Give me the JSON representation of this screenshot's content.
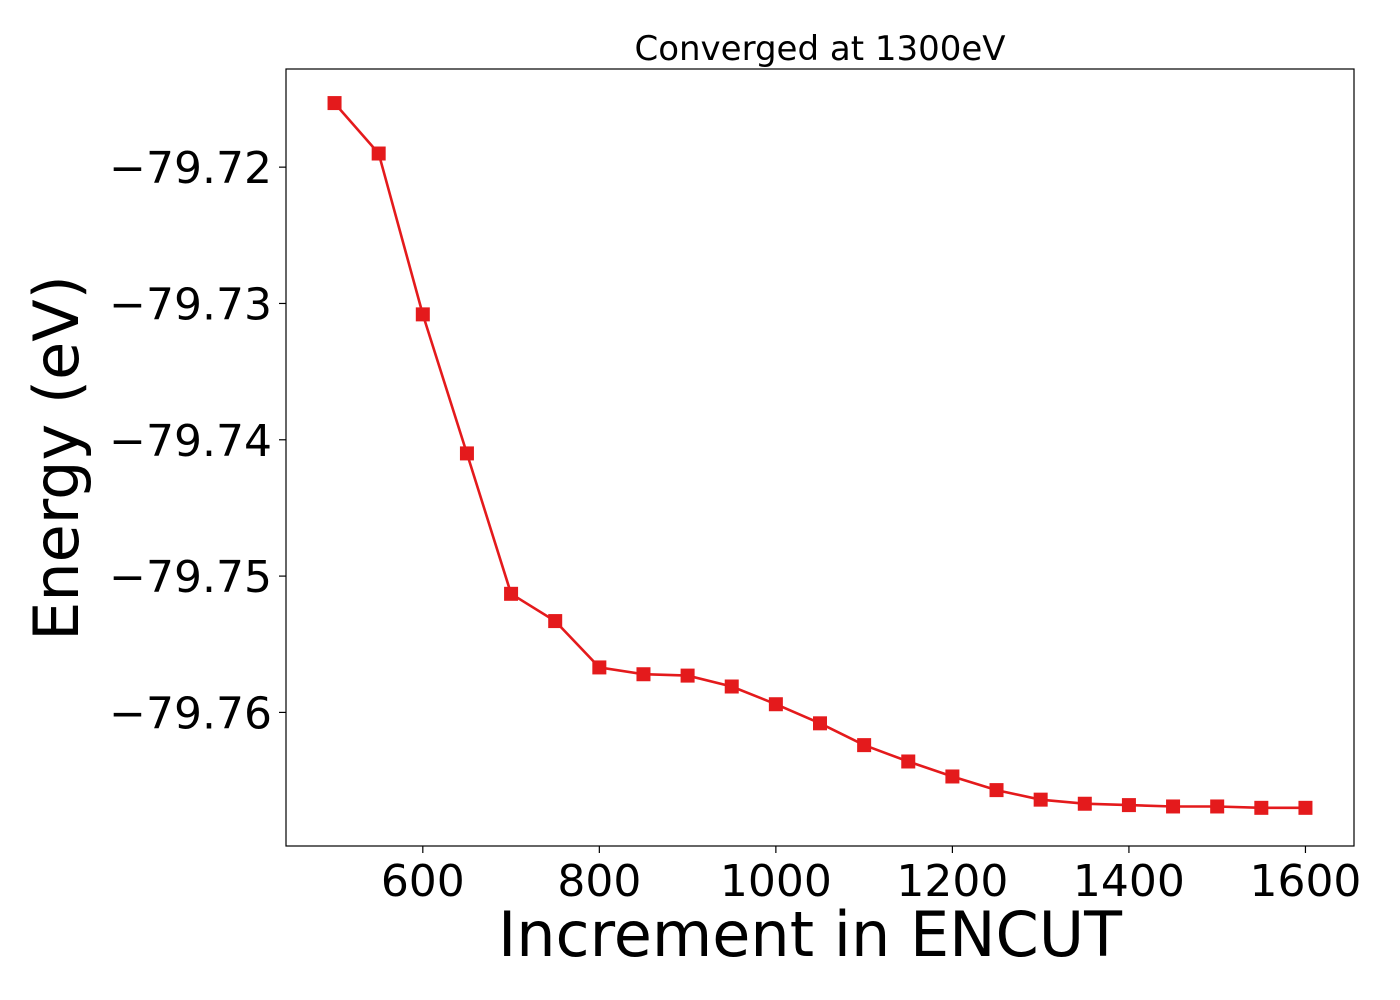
{
  "chart_data": {
    "type": "line",
    "title": "Converged at 1300eV",
    "xlabel": "Increment in ENCUT",
    "ylabel": "Energy (eV)",
    "xlim": [
      445,
      1655
    ],
    "ylim": [
      -79.7698,
      -79.7128
    ],
    "xticks": [
      600,
      800,
      1000,
      1200,
      1400,
      1600
    ],
    "xtick_labels": [
      "600",
      "800",
      "1000",
      "1200",
      "1400",
      "1600"
    ],
    "yticks": [
      -79.72,
      -79.73,
      -79.74,
      -79.75,
      -79.76
    ],
    "ytick_labels": [
      "−79.72",
      "−79.73",
      "−79.74",
      "−79.75",
      "−79.76"
    ],
    "grid": false,
    "marker": "square",
    "color": "#e41a1c",
    "series": [
      {
        "x": [
          500,
          550,
          600,
          650,
          700,
          750,
          800,
          850,
          900,
          950,
          1000,
          1050,
          1100,
          1150,
          1200,
          1250,
          1300,
          1350,
          1400,
          1450,
          1500,
          1550,
          1600
        ],
        "values": [
          -79.7153,
          -79.719,
          -79.7308,
          -79.741,
          -79.7513,
          -79.7533,
          -79.7567,
          -79.7572,
          -79.7573,
          -79.7581,
          -79.7594,
          -79.7608,
          -79.7624,
          -79.7636,
          -79.7647,
          -79.7657,
          -79.7664,
          -79.7667,
          -79.7668,
          -79.7669,
          -79.7669,
          -79.767,
          -79.767
        ]
      }
    ]
  }
}
